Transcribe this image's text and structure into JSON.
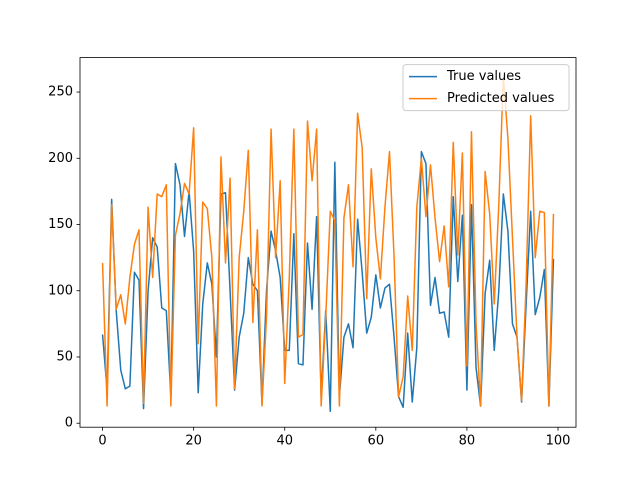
{
  "chart_data": {
    "type": "line",
    "x": [
      0,
      1,
      2,
      3,
      4,
      5,
      6,
      7,
      8,
      9,
      10,
      11,
      12,
      13,
      14,
      15,
      16,
      17,
      18,
      19,
      20,
      21,
      22,
      23,
      24,
      25,
      26,
      27,
      28,
      29,
      30,
      31,
      32,
      33,
      34,
      35,
      36,
      37,
      38,
      39,
      40,
      41,
      42,
      43,
      44,
      45,
      46,
      47,
      48,
      49,
      50,
      51,
      52,
      53,
      54,
      55,
      56,
      57,
      58,
      59,
      60,
      61,
      62,
      63,
      64,
      65,
      66,
      67,
      68,
      69,
      70,
      71,
      72,
      73,
      74,
      75,
      76,
      77,
      78,
      79,
      80,
      81,
      82,
      83,
      84,
      85,
      86,
      87,
      88,
      89,
      90,
      91,
      92,
      93,
      94,
      95,
      96,
      97,
      98,
      99
    ],
    "series": [
      {
        "name": "True values",
        "color": "#1f77b4",
        "values": [
          67,
          25,
          169,
          85,
          40,
          26,
          28,
          114,
          108,
          11,
          100,
          140,
          133,
          87,
          85,
          20,
          196,
          180,
          141,
          175,
          130,
          23,
          90,
          121,
          105,
          50,
          173,
          174,
          100,
          25,
          65,
          83,
          125,
          105,
          100,
          15,
          100,
          145,
          130,
          110,
          55,
          55,
          143,
          45,
          44,
          136,
          86,
          156,
          20,
          85,
          9,
          197,
          20,
          65,
          75,
          57,
          154,
          114,
          68,
          80,
          112,
          87,
          102,
          105,
          65,
          20,
          12,
          68,
          16,
          57,
          205,
          196,
          89,
          110,
          83,
          84,
          65,
          171,
          107,
          157,
          25,
          165,
          42,
          13,
          98,
          123,
          55,
          100,
          173,
          145,
          75,
          65,
          16,
          90,
          160,
          82,
          95,
          116,
          13,
          124
        ]
      },
      {
        "name": "Predicted values",
        "color": "#ff7f0e",
        "values": [
          121,
          13,
          165,
          86,
          97,
          75,
          110,
          135,
          146,
          15,
          163,
          110,
          173,
          171,
          180,
          13,
          142,
          158,
          181,
          173,
          223,
          60,
          167,
          162,
          125,
          13,
          201,
          121,
          185,
          26,
          125,
          160,
          206,
          76,
          146,
          13,
          80,
          222,
          125,
          183,
          30,
          110,
          222,
          65,
          67,
          228,
          183,
          222,
          13,
          80,
          160,
          153,
          13,
          155,
          180,
          118,
          234,
          208,
          94,
          192,
          140,
          109,
          163,
          205,
          126,
          20,
          35,
          96,
          55,
          163,
          200,
          156,
          195,
          155,
          122,
          149,
          103,
          212,
          127,
          204,
          43,
          220,
          75,
          13,
          190,
          158,
          90,
          165,
          262,
          215,
          140,
          65,
          17,
          105,
          232,
          125,
          160,
          159,
          13,
          158
        ]
      }
    ],
    "xlim": [
      -4.95,
      103.95
    ],
    "xticks": [
      0,
      20,
      40,
      60,
      80,
      100
    ],
    "ylim": [
      -3,
      276
    ],
    "yticks": [
      0,
      50,
      100,
      150,
      200,
      250
    ],
    "legend": "upper right"
  }
}
